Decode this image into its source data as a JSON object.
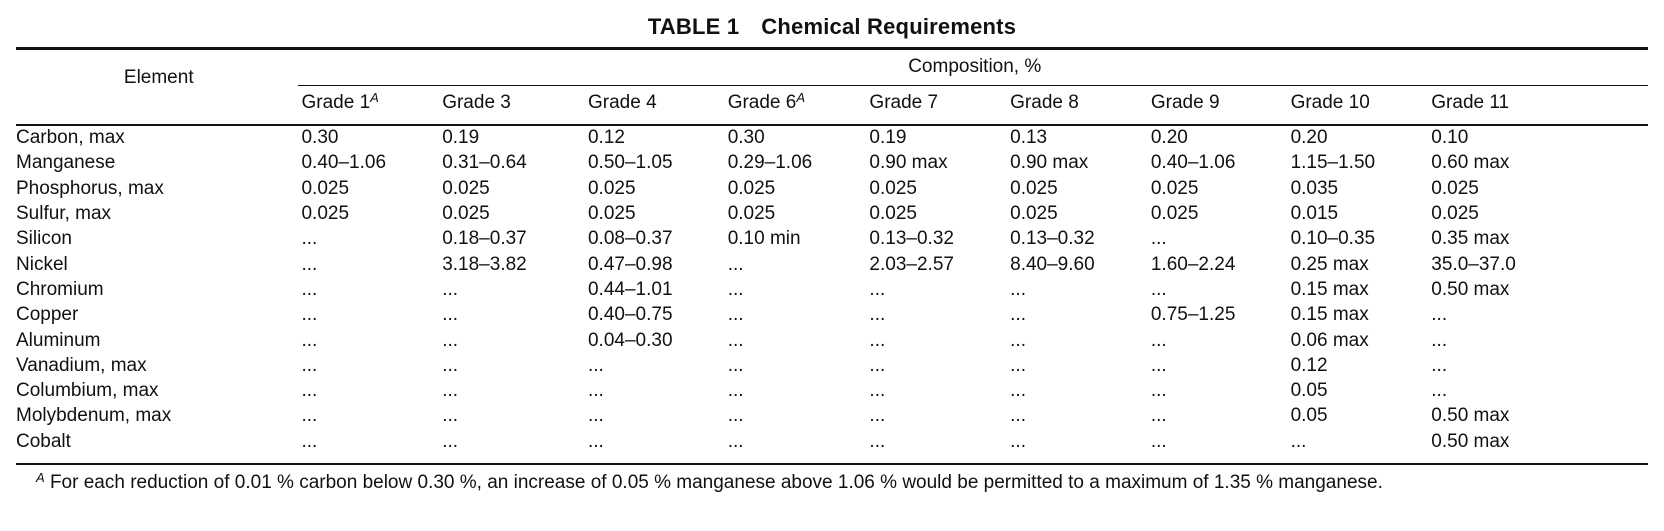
{
  "table": {
    "label": "TABLE 1",
    "title": "Chemical Requirements",
    "element_header": "Element",
    "composition_header": "Composition, %",
    "grades": [
      {
        "name": "Grade 1",
        "note": "A"
      },
      {
        "name": "Grade 3",
        "note": ""
      },
      {
        "name": "Grade 4",
        "note": ""
      },
      {
        "name": "Grade 6",
        "note": "A"
      },
      {
        "name": "Grade 7",
        "note": ""
      },
      {
        "name": "Grade 8",
        "note": ""
      },
      {
        "name": "Grade 9",
        "note": ""
      },
      {
        "name": "Grade 10",
        "note": ""
      },
      {
        "name": "Grade 11",
        "note": ""
      }
    ],
    "rows": [
      {
        "element": "Carbon, max",
        "values": [
          "0.30",
          "0.19",
          "0.12",
          "0.30",
          "0.19",
          "0.13",
          "0.20",
          "0.20",
          "0.10"
        ]
      },
      {
        "element": "Manganese",
        "values": [
          "0.40–1.06",
          "0.31–0.64",
          "0.50–1.05",
          "0.29–1.06",
          "0.90 max",
          "0.90 max",
          "0.40–1.06",
          "1.15–1.50",
          "0.60 max"
        ]
      },
      {
        "element": "Phosphorus, max",
        "values": [
          "0.025",
          "0.025",
          "0.025",
          "0.025",
          "0.025",
          "0.025",
          "0.025",
          "0.035",
          "0.025"
        ]
      },
      {
        "element": "Sulfur, max",
        "values": [
          "0.025",
          "0.025",
          "0.025",
          "0.025",
          "0.025",
          "0.025",
          "0.025",
          "0.015",
          "0.025"
        ]
      },
      {
        "element": "Silicon",
        "values": [
          "...",
          "0.18–0.37",
          "0.08–0.37",
          "0.10 min",
          "0.13–0.32",
          "0.13–0.32",
          "...",
          "0.10–0.35",
          "0.35 max"
        ]
      },
      {
        "element": "Nickel",
        "values": [
          "...",
          "3.18–3.82",
          "0.47–0.98",
          "...",
          "2.03–2.57",
          "8.40–9.60",
          "1.60–2.24",
          "0.25 max",
          "35.0–37.0"
        ]
      },
      {
        "element": "Chromium",
        "values": [
          "...",
          "...",
          "0.44–1.01",
          "...",
          "...",
          "...",
          "...",
          "0.15 max",
          "0.50 max"
        ]
      },
      {
        "element": "Copper",
        "values": [
          "...",
          "...",
          "0.40–0.75",
          "...",
          "...",
          "...",
          "0.75–1.25",
          "0.15 max",
          "..."
        ]
      },
      {
        "element": "Aluminum",
        "values": [
          "...",
          "...",
          "0.04–0.30",
          "...",
          "...",
          "...",
          "...",
          "0.06 max",
          "..."
        ]
      },
      {
        "element": "Vanadium, max",
        "values": [
          "...",
          "...",
          "...",
          "...",
          "...",
          "...",
          "...",
          "0.12",
          "..."
        ]
      },
      {
        "element": "Columbium, max",
        "values": [
          "...",
          "...",
          "...",
          "...",
          "...",
          "...",
          "...",
          "0.05",
          "..."
        ]
      },
      {
        "element": "Molybdenum, max",
        "values": [
          "...",
          "...",
          "...",
          "...",
          "...",
          "...",
          "...",
          "0.05",
          "0.50 max"
        ]
      },
      {
        "element": "Cobalt",
        "values": [
          "...",
          "...",
          "...",
          "...",
          "...",
          "...",
          "...",
          "...",
          "0.50 max"
        ]
      }
    ],
    "footnote": {
      "marker": "A",
      "text": "For each reduction of 0.01 % carbon below 0.30 %, an increase of 0.05 % manganese above 1.06 % would be permitted to a maximum of 1.35 % manganese."
    }
  }
}
